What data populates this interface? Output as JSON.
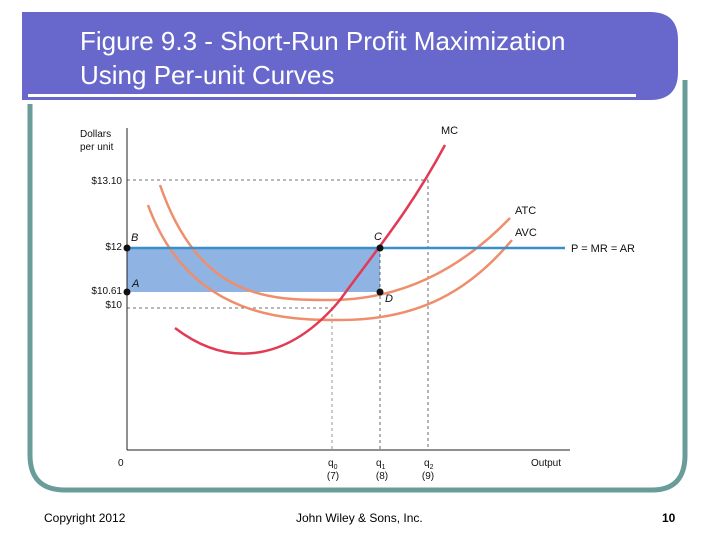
{
  "slide": {
    "title_line1": "Figure 9.3 - Short-Run Profit Maximization",
    "title_line2": "Using Per-unit Curves",
    "copyright": "Copyright 2012",
    "publisher": "John Wiley & Sons, Inc.",
    "page_number": "10"
  },
  "colors": {
    "banner": "#6767cc",
    "frame": "#6a9c9a",
    "mc_curve": "#e23a55",
    "cost_curves": "#ef8e6c",
    "price_line": "#3a8fc9",
    "profit_area": "#8fb3e3"
  },
  "diagram": {
    "y_axis_title_line1": "Dollars",
    "y_axis_title_line2": "per unit",
    "x_axis_title": "Output",
    "origin": "0",
    "y_ticks": [
      "$13.10",
      "$12",
      "$10.61",
      "$10"
    ],
    "point_labels": {
      "B": "B",
      "A": "A",
      "C": "C",
      "D": "D"
    },
    "curve_labels": {
      "mc": "MC",
      "atc": "ATC",
      "avc": "AVC",
      "price": "P = MR = AR"
    },
    "x_ticks": [
      {
        "main": "q",
        "sub": "0",
        "value": "(7)"
      },
      {
        "main": "q",
        "sub": "1",
        "value": "(8)"
      },
      {
        "main": "q",
        "sub": "2",
        "value": "(9)"
      }
    ]
  }
}
